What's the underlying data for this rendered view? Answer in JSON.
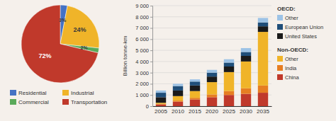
{
  "chart_data": [
    {
      "type": "pie",
      "categories": [
        "Residential",
        "Industrial",
        "Commercial",
        "Transportation"
      ],
      "values": [
        3,
        24,
        2,
        72
      ],
      "value_labels": [
        "3%",
        "24%",
        "2%",
        "72%"
      ],
      "colors": [
        "#4472c4",
        "#f0b429",
        "#5aaa5a",
        "#c0392b"
      ],
      "data_labels": true,
      "legend": "bottom"
    },
    {
      "type": "bar",
      "stacked": true,
      "categories": [
        "2005",
        "2010",
        "2015",
        "2020",
        "2025",
        "2030",
        "2035"
      ],
      "series": [
        {
          "name": "China",
          "group": "Non-OECD:",
          "color": "#c0392b",
          "values": [
            150,
            400,
            600,
            800,
            1000,
            1100,
            1200
          ]
        },
        {
          "name": "India",
          "group": "Non-OECD:",
          "color": "#e67e22",
          "values": [
            50,
            100,
            150,
            250,
            350,
            500,
            650
          ]
        },
        {
          "name": "Other",
          "group": "Non-OECD:",
          "color": "#f0b429",
          "values": [
            100,
            400,
            600,
            1100,
            1700,
            2400,
            4800
          ]
        },
        {
          "name": "United States",
          "group": "OECD:",
          "color": "#1a1a1a",
          "values": [
            500,
            500,
            500,
            500,
            500,
            500,
            500
          ]
        },
        {
          "name": "European Union",
          "group": "OECD:",
          "color": "#1f4e79",
          "values": [
            400,
            400,
            350,
            350,
            350,
            350,
            350
          ]
        },
        {
          "name": "Other",
          "group": "OECD:",
          "color": "#9dc3e6",
          "values": [
            200,
            200,
            200,
            250,
            300,
            350,
            400
          ]
        }
      ],
      "y_label": "Billion tonne-km",
      "ylim": [
        0,
        9000
      ],
      "yticks": [
        0,
        {
          "value": 1000,
          "label": "1 000"
        },
        {
          "value": 2000,
          "label": "2 000"
        },
        {
          "value": 3000,
          "label": "3 000"
        },
        {
          "value": 4000,
          "label": "4 000"
        },
        {
          "value": 5000,
          "label": "5 000"
        },
        {
          "value": 6000,
          "label": "6 000"
        },
        {
          "value": 7000,
          "label": "7 000"
        },
        {
          "value": 8000,
          "label": "8 000"
        },
        {
          "value": 9000,
          "label": "9 000"
        }
      ],
      "grid": true,
      "legend": "right"
    }
  ]
}
